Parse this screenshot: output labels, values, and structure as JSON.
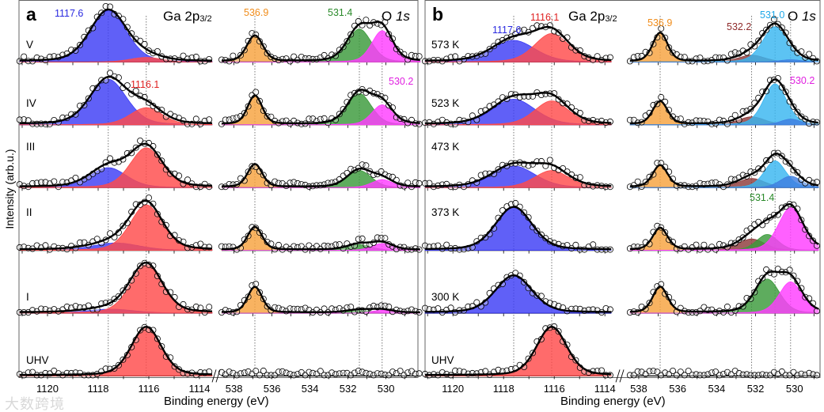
{
  "figure": {
    "y_label": "Intensity (arb.u.)",
    "watermark": "大数跨境",
    "colors": {
      "blue": "#3d3df5",
      "red": "#ff4a4a",
      "orange": "#f7a23e",
      "green": "#3a9a3a",
      "magenta": "#ff3dff",
      "maroon": "#8e3b3b",
      "lightblue": "#38b6f0",
      "blue2": "#3f7fe0"
    }
  },
  "chart_data": [
    {
      "type": "line",
      "panel": "a",
      "xlabel": "Binding energy (eV)",
      "ylabel": "Intensity (arb.u.)",
      "ga_title": "Ga 2p",
      "ga_title_italic": "p",
      "ga_sub": "3/2",
      "o_title": "O ",
      "o_title_italic": "1s",
      "ga_ticks": [
        1120,
        1118,
        1116,
        1114
      ],
      "o_ticks": [
        538,
        536,
        534,
        532,
        530
      ],
      "ga_range": [
        1121.1,
        1113.5
      ],
      "o_range": [
        538.65,
        528.2
      ],
      "ref_lines_ga": [
        1117.6,
        1116.1
      ],
      "ref_lines_o": [
        536.9,
        531.4,
        530.2
      ],
      "peak_labels": [
        {
          "text": "1117.6",
          "color": "#2a2ae0"
        },
        {
          "text": "1116.1",
          "color": "#e02020"
        },
        {
          "text": "536.9",
          "color": "#f08c1a"
        },
        {
          "text": "531.4",
          "color": "#2a8a2a"
        },
        {
          "text": "530.2",
          "color": "#e020e0"
        }
      ],
      "rows": [
        {
          "label": "V",
          "ga": [
            {
              "center": 1117.6,
              "fwhm": 1.7,
              "amp": 0.9,
              "color": "blue"
            },
            {
              "center": 1116.1,
              "fwhm": 1.5,
              "amp": 0.08,
              "color": "red"
            }
          ],
          "o": [
            {
              "center": 536.9,
              "fwhm": 1.0,
              "amp": 0.45,
              "color": "orange"
            },
            {
              "center": 531.4,
              "fwhm": 1.5,
              "amp": 0.58,
              "color": "green"
            },
            {
              "center": 530.2,
              "fwhm": 1.3,
              "amp": 0.55,
              "color": "magenta"
            }
          ]
        },
        {
          "label": "IV",
          "ga": [
            {
              "center": 1117.6,
              "fwhm": 1.7,
              "amp": 0.8,
              "color": "blue"
            },
            {
              "center": 1116.1,
              "fwhm": 1.5,
              "amp": 0.3,
              "color": "red"
            }
          ],
          "o": [
            {
              "center": 536.9,
              "fwhm": 0.9,
              "amp": 0.5,
              "color": "orange"
            },
            {
              "center": 531.4,
              "fwhm": 1.5,
              "amp": 0.55,
              "color": "green"
            },
            {
              "center": 530.2,
              "fwhm": 1.3,
              "amp": 0.35,
              "color": "magenta"
            }
          ]
        },
        {
          "label": "III",
          "ga": [
            {
              "center": 1117.6,
              "fwhm": 1.7,
              "amp": 0.35,
              "color": "blue"
            },
            {
              "center": 1116.1,
              "fwhm": 1.5,
              "amp": 0.7,
              "color": "red"
            }
          ],
          "o": [
            {
              "center": 536.9,
              "fwhm": 0.9,
              "amp": 0.4,
              "color": "orange"
            },
            {
              "center": 531.4,
              "fwhm": 1.5,
              "amp": 0.3,
              "color": "green"
            },
            {
              "center": 530.2,
              "fwhm": 1.3,
              "amp": 0.14,
              "color": "magenta"
            }
          ]
        },
        {
          "label": "II",
          "ga": [
            {
              "center": 1117.3,
              "fwhm": 2.2,
              "amp": 0.13,
              "color": "blue"
            },
            {
              "center": 1116.1,
              "fwhm": 1.5,
              "amp": 0.8,
              "color": "red"
            }
          ],
          "o": [
            {
              "center": 536.9,
              "fwhm": 0.9,
              "amp": 0.4,
              "color": "orange"
            },
            {
              "center": 531.4,
              "fwhm": 1.5,
              "amp": 0.1,
              "color": "green"
            },
            {
              "center": 530.2,
              "fwhm": 1.3,
              "amp": 0.12,
              "color": "magenta"
            }
          ]
        },
        {
          "label": "I",
          "ga": [
            {
              "center": 1117.5,
              "fwhm": 2.2,
              "amp": 0.07,
              "color": "blue"
            },
            {
              "center": 1116.1,
              "fwhm": 1.5,
              "amp": 0.85,
              "color": "red"
            }
          ],
          "o": [
            {
              "center": 536.9,
              "fwhm": 0.9,
              "amp": 0.45,
              "color": "orange"
            },
            {
              "center": 531.4,
              "fwhm": 1.5,
              "amp": 0.05,
              "color": "green"
            },
            {
              "center": 530.2,
              "fwhm": 1.3,
              "amp": 0.05,
              "color": "magenta"
            }
          ]
        },
        {
          "label": "UHV",
          "ga": [
            {
              "center": 1116.1,
              "fwhm": 1.4,
              "amp": 0.85,
              "color": "red"
            }
          ],
          "o": []
        }
      ]
    },
    {
      "type": "line",
      "panel": "b",
      "xlabel": "Binding energy (eV)",
      "ylabel": "Intensity (arb.u.)",
      "ga_title": "Ga 2p",
      "ga_sub": "3/2",
      "o_title": "O ",
      "o_title_italic": "1s",
      "ga_ticks": [
        1120,
        1118,
        1116,
        1114
      ],
      "o_ticks": [
        538,
        536,
        534,
        532,
        530
      ],
      "ga_range": [
        1121.1,
        1113.75
      ],
      "o_range": [
        538.45,
        528.77
      ],
      "ref_lines_ga": [
        1117.6,
        1116.1
      ],
      "ref_lines_o": [
        536.9,
        532.2,
        531.0,
        530.2
      ],
      "peak_labels": [
        {
          "text": "1117.6",
          "color": "#2a2ae0"
        },
        {
          "text": "1116.1",
          "color": "#e02020"
        },
        {
          "text": "536.9",
          "color": "#f08c1a"
        },
        {
          "text": "532.2",
          "color": "#8e2a2a"
        },
        {
          "text": "531.0",
          "color": "#1fa8e8"
        },
        {
          "text": "530.2",
          "color": "#e020e0"
        },
        {
          "text": "531.4",
          "color": "#2a8a2a"
        }
      ],
      "rows": [
        {
          "label": "573 K",
          "ga": [
            {
              "center": 1117.6,
              "fwhm": 2.0,
              "amp": 0.38,
              "color": "blue"
            },
            {
              "center": 1116.1,
              "fwhm": 1.6,
              "amp": 0.5,
              "color": "red"
            }
          ],
          "o": [
            {
              "center": 536.9,
              "fwhm": 0.9,
              "amp": 0.5,
              "color": "orange"
            },
            {
              "center": 532.2,
              "fwhm": 1.6,
              "amp": 0.12,
              "color": "maroon"
            },
            {
              "center": 531.0,
              "fwhm": 1.5,
              "amp": 0.62,
              "color": "lightblue"
            },
            {
              "center": 530.2,
              "fwhm": 1.3,
              "amp": 0.04,
              "color": "blue2"
            }
          ]
        },
        {
          "label": "523 K",
          "ga": [
            {
              "center": 1117.6,
              "fwhm": 2.0,
              "amp": 0.45,
              "color": "blue"
            },
            {
              "center": 1116.1,
              "fwhm": 1.6,
              "amp": 0.42,
              "color": "red"
            }
          ],
          "o": [
            {
              "center": 536.9,
              "fwhm": 0.9,
              "amp": 0.4,
              "color": "orange"
            },
            {
              "center": 532.2,
              "fwhm": 1.6,
              "amp": 0.14,
              "color": "maroon"
            },
            {
              "center": 531.0,
              "fwhm": 1.4,
              "amp": 0.72,
              "color": "lightblue"
            },
            {
              "center": 530.2,
              "fwhm": 1.2,
              "amp": 0.1,
              "color": "blue2"
            }
          ]
        },
        {
          "label": "473 K",
          "ga": [
            {
              "center": 1117.6,
              "fwhm": 2.0,
              "amp": 0.38,
              "color": "blue"
            },
            {
              "center": 1116.1,
              "fwhm": 1.6,
              "amp": 0.3,
              "color": "red"
            }
          ],
          "o": [
            {
              "center": 536.9,
              "fwhm": 0.9,
              "amp": 0.38,
              "color": "orange"
            },
            {
              "center": 532.2,
              "fwhm": 1.6,
              "amp": 0.16,
              "color": "maroon"
            },
            {
              "center": 531.0,
              "fwhm": 1.3,
              "amp": 0.47,
              "color": "lightblue"
            },
            {
              "center": 530.2,
              "fwhm": 1.3,
              "amp": 0.2,
              "color": "blue2"
            }
          ]
        },
        {
          "label": "373 K",
          "ga": [
            {
              "center": 1117.6,
              "fwhm": 1.7,
              "amp": 0.75,
              "color": "blue"
            }
          ],
          "o": [
            {
              "center": 536.9,
              "fwhm": 0.9,
              "amp": 0.38,
              "color": "orange"
            },
            {
              "center": 532.2,
              "fwhm": 1.6,
              "amp": 0.2,
              "color": "maroon"
            },
            {
              "center": 531.4,
              "fwhm": 1.3,
              "amp": 0.28,
              "color": "green"
            },
            {
              "center": 530.2,
              "fwhm": 1.5,
              "amp": 0.75,
              "color": "magenta"
            }
          ]
        },
        {
          "label": "300 K",
          "ga": [
            {
              "center": 1117.6,
              "fwhm": 1.7,
              "amp": 0.65,
              "color": "blue"
            }
          ],
          "o": [
            {
              "center": 536.9,
              "fwhm": 0.9,
              "amp": 0.45,
              "color": "orange"
            },
            {
              "center": 531.4,
              "fwhm": 1.5,
              "amp": 0.6,
              "color": "green"
            },
            {
              "center": 530.2,
              "fwhm": 1.4,
              "amp": 0.55,
              "color": "magenta"
            }
          ]
        },
        {
          "label": "UHV",
          "ga": [
            {
              "center": 1116.1,
              "fwhm": 1.4,
              "amp": 0.85,
              "color": "red"
            }
          ],
          "o": []
        }
      ]
    }
  ]
}
